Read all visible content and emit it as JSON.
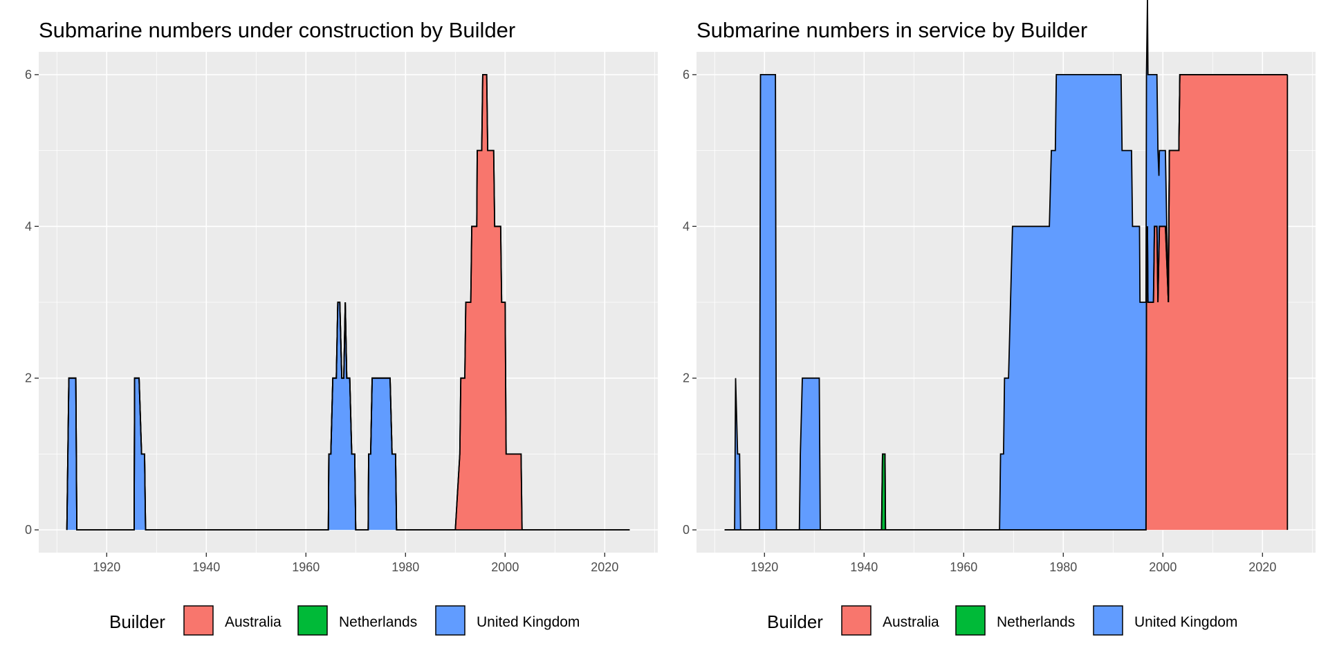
{
  "legend": {
    "title": "Builder",
    "position": "bottom",
    "entries": [
      {
        "label": "Australia",
        "color": "#F8766D"
      },
      {
        "label": "Netherlands",
        "color": "#00BA38"
      },
      {
        "label": "United Kingdom",
        "color": "#619CFF"
      }
    ]
  },
  "chart_data": [
    {
      "type": "area",
      "stacked": true,
      "title": "Submarine numbers under construction by Builder",
      "xlabel": "",
      "ylabel": "",
      "xlim": [
        1912,
        2025
      ],
      "ylim": [
        0,
        6
      ],
      "x_ticks": [
        1920,
        1940,
        1960,
        1980,
        2000,
        2020
      ],
      "y_ticks": [
        0,
        2,
        4,
        6
      ],
      "grid": true,
      "series": [
        {
          "name": "United Kingdom",
          "color": "#619CFF",
          "points": [
            [
              1912,
              0
            ],
            [
              1912,
              1
            ],
            [
              1912.4,
              2
            ],
            [
              1913.2,
              2
            ],
            [
              1913.8,
              2
            ],
            [
              1914,
              0
            ],
            [
              1925.5,
              0
            ],
            [
              1925.6,
              2
            ],
            [
              1926.5,
              2
            ],
            [
              1927,
              1
            ],
            [
              1927.6,
              1
            ],
            [
              1927.8,
              0
            ],
            [
              1964.5,
              0
            ],
            [
              1964.6,
              1
            ],
            [
              1965,
              1
            ],
            [
              1965.4,
              2
            ],
            [
              1966.1,
              2
            ],
            [
              1966.4,
              3
            ],
            [
              1966.8,
              3
            ],
            [
              1967.2,
              2
            ],
            [
              1967.6,
              2
            ],
            [
              1967.9,
              3
            ],
            [
              1968.2,
              2
            ],
            [
              1968.8,
              2
            ],
            [
              1969.2,
              1
            ],
            [
              1969.8,
              1
            ],
            [
              1970,
              0
            ],
            [
              1972.5,
              0
            ],
            [
              1972.6,
              1
            ],
            [
              1973,
              1
            ],
            [
              1973.3,
              2
            ],
            [
              1976.9,
              2
            ],
            [
              1977.3,
              1
            ],
            [
              1978,
              1
            ],
            [
              1978.2,
              0
            ],
            [
              1990,
              0
            ],
            [
              2025,
              0
            ]
          ]
        },
        {
          "name": "Australia",
          "color": "#F8766D",
          "points": [
            [
              1912,
              0
            ],
            [
              1990,
              0
            ],
            [
              1990,
              1
            ],
            [
              1990.9,
              1
            ],
            [
              1991.1,
              2
            ],
            [
              1991.9,
              2
            ],
            [
              1992.1,
              3
            ],
            [
              1993.1,
              3
            ],
            [
              1993.3,
              4
            ],
            [
              1994.3,
              4
            ],
            [
              1994.4,
              5
            ],
            [
              1995.3,
              5
            ],
            [
              1995.5,
              6
            ],
            [
              1996.3,
              6
            ],
            [
              1996.5,
              5
            ],
            [
              1997.7,
              5
            ],
            [
              1997.9,
              4
            ],
            [
              1999.1,
              4
            ],
            [
              1999.3,
              3
            ],
            [
              2000,
              3
            ],
            [
              2000.2,
              1
            ],
            [
              2003.2,
              1
            ],
            [
              2003.4,
              0
            ],
            [
              2025,
              0
            ]
          ]
        },
        {
          "name": "Netherlands",
          "color": "#00BA38",
          "points": [
            [
              1912,
              0
            ],
            [
              2025,
              0
            ]
          ]
        }
      ]
    },
    {
      "type": "area",
      "stacked": true,
      "title": "Submarine numbers in service by Builder",
      "xlabel": "",
      "ylabel": "",
      "xlim": [
        1912,
        2025
      ],
      "ylim": [
        0,
        6
      ],
      "x_ticks": [
        1920,
        1940,
        1960,
        1980,
        2000,
        2020
      ],
      "y_ticks": [
        0,
        2,
        4,
        6
      ],
      "grid": true,
      "series": [
        {
          "name": "Australia",
          "color": "#F8766D",
          "points": [
            [
              1912,
              0
            ],
            [
              1996.6,
              0
            ],
            [
              1996.7,
              3
            ],
            [
              1996.9,
              4
            ],
            [
              1997,
              3
            ],
            [
              1998.1,
              3
            ],
            [
              1998.3,
              4
            ],
            [
              1998.8,
              4
            ],
            [
              1999,
              3
            ],
            [
              1999.3,
              4
            ],
            [
              2000.5,
              4
            ],
            [
              2001.1,
              3
            ],
            [
              2001.3,
              5
            ],
            [
              2003.2,
              5
            ],
            [
              2003.4,
              6
            ],
            [
              2025,
              6
            ],
            [
              2025,
              0
            ]
          ]
        },
        {
          "name": "Netherlands",
          "color": "#00BA38",
          "points": [
            [
              1912,
              0
            ],
            [
              1943.5,
              0
            ],
            [
              1943.7,
              1
            ],
            [
              1944.2,
              1
            ],
            [
              1944.3,
              0
            ],
            [
              2025,
              0
            ]
          ]
        },
        {
          "name": "United Kingdom",
          "color": "#619CFF",
          "points": [
            [
              1912,
              0
            ],
            [
              1914,
              0
            ],
            [
              1914.2,
              2
            ],
            [
              1914.6,
              1
            ],
            [
              1915,
              1
            ],
            [
              1915.2,
              0
            ],
            [
              1919,
              0
            ],
            [
              1919.2,
              6
            ],
            [
              1922.2,
              6
            ],
            [
              1922.4,
              0
            ],
            [
              1927,
              0
            ],
            [
              1927.2,
              1
            ],
            [
              1927.6,
              2
            ],
            [
              1931,
              2
            ],
            [
              1931.2,
              0
            ],
            [
              1967.2,
              0
            ],
            [
              1967.4,
              1
            ],
            [
              1968,
              1
            ],
            [
              1968.2,
              2
            ],
            [
              1969,
              2
            ],
            [
              1969.4,
              3
            ],
            [
              1969.8,
              4
            ],
            [
              1977.2,
              4
            ],
            [
              1977.6,
              5
            ],
            [
              1978.4,
              5
            ],
            [
              1978.6,
              6
            ],
            [
              1991.6,
              6
            ],
            [
              1991.8,
              5
            ],
            [
              1993.7,
              5
            ],
            [
              1993.9,
              4
            ],
            [
              1995.3,
              4
            ],
            [
              1995.4,
              3
            ],
            [
              1998.1,
              3
            ],
            [
              1998.3,
              2
            ],
            [
              1999,
              2
            ],
            [
              1999.2,
              1
            ],
            [
              2000.5,
              1
            ],
            [
              2001,
              0
            ],
            [
              2025,
              0
            ]
          ]
        }
      ]
    }
  ]
}
